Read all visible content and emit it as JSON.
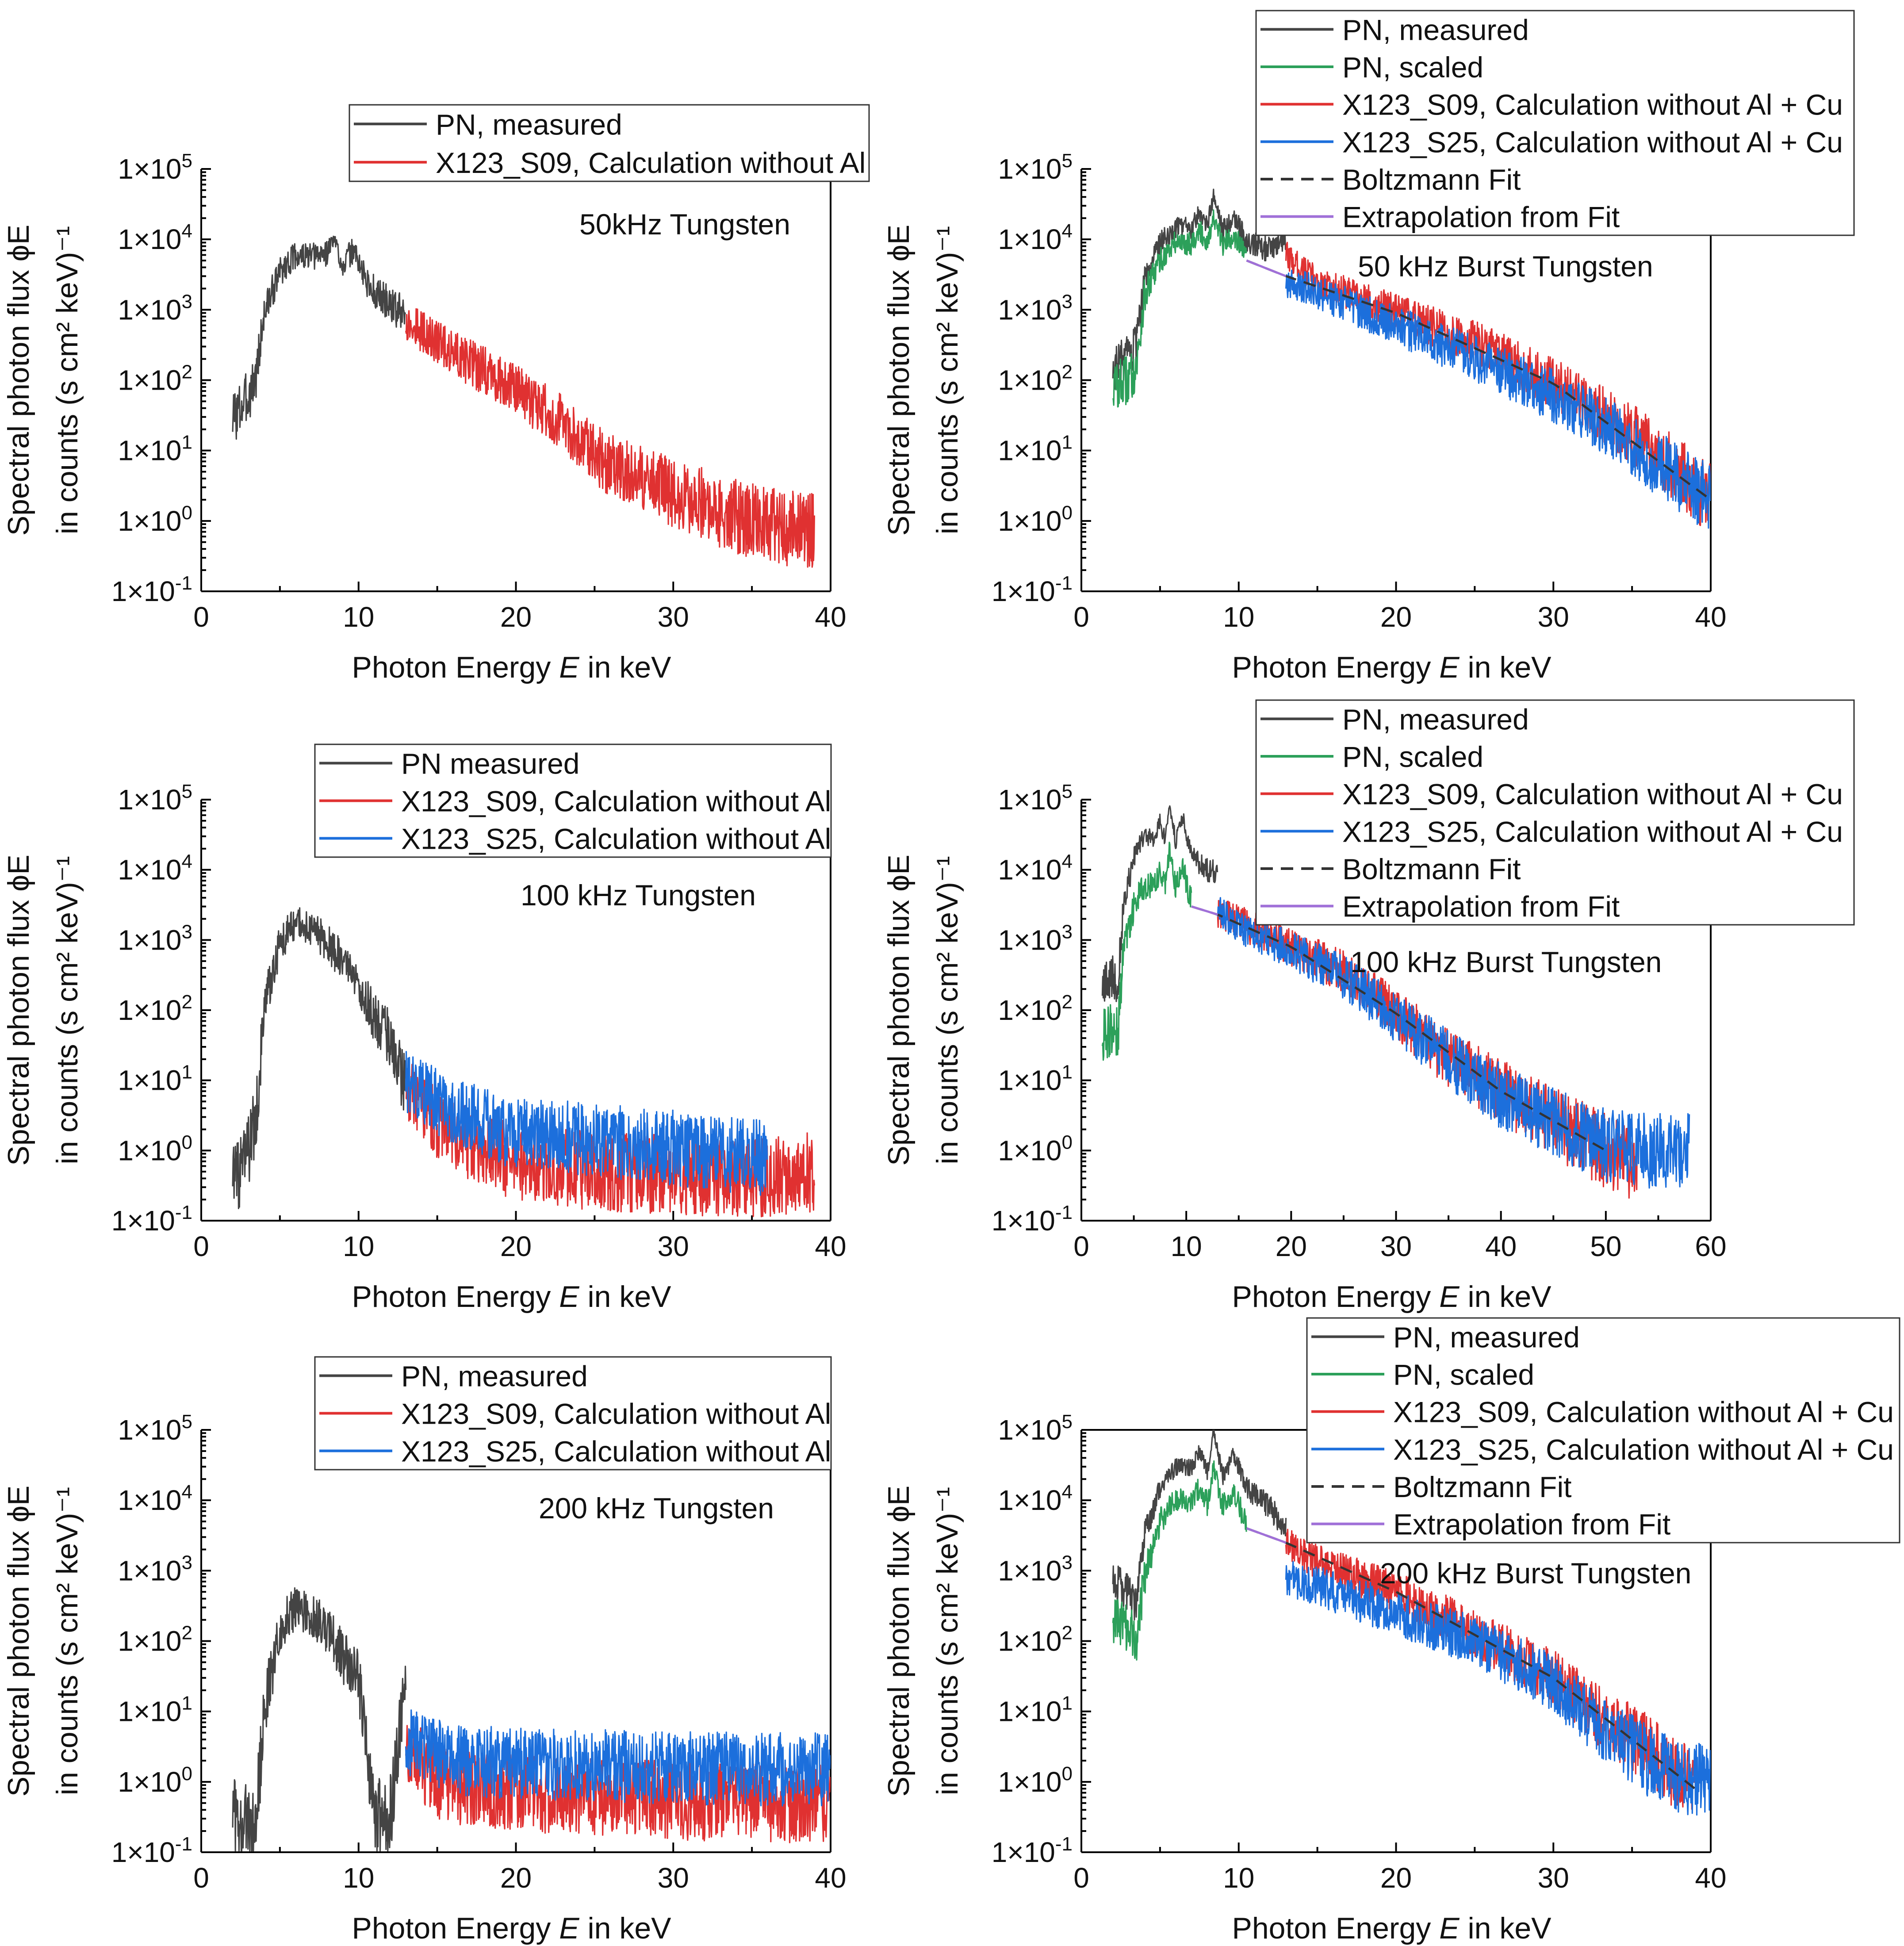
{
  "figure": {
    "y_axis_label_line1": "Spectral photon flux ϕE",
    "y_axis_label_line2": "in counts (s cm² keV)⁻¹",
    "x_axis_label": "Photon Energy E in keV"
  },
  "colors": {
    "pn_measured": "#444444",
    "pn_scaled": "#2ca05a",
    "x123_s09": "#e03131",
    "x123_s25": "#1c6fdc",
    "boltzmann_fit": "#333333",
    "extrapolation": "#a070d8"
  },
  "chart_data": [
    {
      "type": "line",
      "title": "50kHz Tungsten",
      "xlabel": "Photon Energy E in keV",
      "ylabel": "Spectral photon flux ϕE in counts (s cm² keV)⁻¹",
      "xlim": [
        0,
        40
      ],
      "ylim": [
        0.1,
        100000
      ],
      "yscale": "log",
      "xticks": [
        "0",
        "10",
        "20",
        "30",
        "40"
      ],
      "yticks": [
        "1×10-1",
        "1×100",
        "1×101",
        "1×102",
        "1×103",
        "1×104",
        "1×105"
      ],
      "legend": [
        "PN, measured",
        "X123_S09, Calculation without Al"
      ],
      "series": [
        {
          "name": "PN, measured",
          "color_key": "pn_measured",
          "x": [
            2,
            2.5,
            3,
            3.5,
            4,
            5,
            6,
            7,
            8,
            8.4,
            9,
            9.7,
            10.5,
            11,
            12,
            13
          ],
          "y": [
            30,
            40,
            60,
            120,
            900,
            3500,
            6000,
            5500,
            6500,
            10000,
            4500,
            7000,
            2500,
            1800,
            1200,
            800
          ]
        },
        {
          "name": "X123_S09, Calculation without Al",
          "color_key": "x123_s09",
          "x": [
            13,
            15,
            17,
            19,
            21,
            23,
            25,
            26,
            28,
            30,
            32,
            33,
            35,
            37,
            39
          ],
          "y": [
            700,
            350,
            180,
            100,
            50,
            25,
            10,
            6,
            4,
            2.5,
            1.8,
            1.3,
            1.0,
            0.8,
            0.7
          ]
        }
      ]
    },
    {
      "type": "line",
      "title": "50 kHz Burst Tungsten",
      "xlabel": "Photon Energy E in keV",
      "ylabel": "Spectral photon flux ϕE in counts (s cm² keV)⁻¹",
      "xlim": [
        0,
        40
      ],
      "ylim": [
        0.1,
        100000
      ],
      "yscale": "log",
      "xticks": [
        "0",
        "10",
        "20",
        "30",
        "40"
      ],
      "yticks": [
        "1×10-1",
        "1×100",
        "1×101",
        "1×102",
        "1×103",
        "1×104",
        "1×105"
      ],
      "legend": [
        "PN, measured",
        "PN, scaled",
        "X123_S09, Calculation without Al + Cu",
        "X123_S25, Calculation without Al + Cu",
        "Boltzmann Fit",
        "Extrapolation from Fit"
      ],
      "series": [
        {
          "name": "PN, measured",
          "color_key": "pn_measured",
          "x": [
            2,
            3,
            3.5,
            4,
            5,
            6,
            7,
            7.5,
            8,
            8.4,
            9,
            9.7,
            10.5,
            12,
            13
          ],
          "y": [
            150,
            200,
            300,
            2500,
            9000,
            15000,
            14000,
            25000,
            16000,
            40000,
            13000,
            22000,
            9000,
            7000,
            10000
          ]
        },
        {
          "name": "PN, scaled",
          "color_key": "pn_scaled",
          "x": [
            2,
            3,
            3.5,
            4,
            5,
            6,
            7,
            7.5,
            8,
            8.4,
            9,
            9.7,
            10.5
          ],
          "y": [
            80,
            100,
            150,
            1500,
            5000,
            9000,
            9000,
            13000,
            9500,
            20000,
            8000,
            12000,
            5000
          ]
        },
        {
          "name": "X123_S09, Calculation without Al + Cu",
          "color_key": "x123_s09",
          "x": [
            13,
            15,
            20,
            25,
            30,
            33,
            36,
            38,
            40
          ],
          "y": [
            6000,
            2500,
            900,
            350,
            90,
            35,
            12,
            5,
            2
          ]
        },
        {
          "name": "X123_S25, Calculation without Al + Cu",
          "color_key": "x123_s25",
          "x": [
            13,
            15,
            20,
            25,
            30,
            33,
            36,
            38,
            40
          ],
          "y": [
            2500,
            1800,
            600,
            200,
            60,
            25,
            8,
            4,
            2
          ]
        },
        {
          "name": "Boltzmann Fit",
          "color_key": "boltzmann_fit",
          "x": [
            10.5,
            13,
            20,
            30,
            40
          ],
          "y": [
            5000,
            3000,
            900,
            90,
            2
          ]
        },
        {
          "name": "Extrapolation from Fit",
          "color_key": "extrapolation",
          "x": [
            10.5,
            13
          ],
          "y": [
            5000,
            3000
          ]
        }
      ]
    },
    {
      "type": "line",
      "title": "100 kHz  Tungsten",
      "xlabel": "Photon Energy E in keV",
      "ylabel": "Spectral photon flux ϕE in counts (s cm² keV)⁻¹",
      "xlim": [
        0,
        40
      ],
      "ylim": [
        0.1,
        100000
      ],
      "yscale": "log",
      "xticks": [
        "0",
        "10",
        "20",
        "30",
        "40"
      ],
      "yticks": [
        "1×10-1",
        "1×100",
        "1×101",
        "1×102",
        "1×103",
        "1×104",
        "1×105"
      ],
      "legend": [
        "PN measured",
        "X123_S09, Calculation without Al",
        "X123_S25, Calculation without Al"
      ],
      "series": [
        {
          "name": "PN measured",
          "color_key": "pn_measured",
          "x": [
            2,
            2.5,
            3,
            3.5,
            4,
            5,
            6,
            7,
            8,
            9,
            10,
            11,
            12,
            12.8,
            13
          ],
          "y": [
            0.5,
            0.4,
            1.0,
            3,
            100,
            900,
            1800,
            1500,
            900,
            500,
            200,
            80,
            40,
            10,
            8
          ]
        },
        {
          "name": "X123_S09, Calculation without Al",
          "color_key": "x123_s09",
          "x": [
            13,
            15,
            17,
            19,
            21,
            25,
            30,
            35,
            39
          ],
          "y": [
            8,
            2.5,
            1.2,
            0.8,
            0.6,
            0.5,
            0.45,
            0.4,
            0.5
          ]
        },
        {
          "name": "X123_S25, Calculation without Al",
          "color_key": "x123_s25",
          "x": [
            13,
            15,
            17,
            19,
            21,
            25,
            30,
            33,
            36
          ],
          "y": [
            10,
            5,
            3,
            2,
            1.8,
            1.4,
            1.1,
            0.9,
            0.8
          ]
        }
      ]
    },
    {
      "type": "line",
      "title": "100 kHz Burst Tungsten",
      "xlabel": "Photon Energy E in keV",
      "ylabel": "Spectral photon flux ϕE in counts (s cm² keV)⁻¹",
      "xlim": [
        0,
        60
      ],
      "ylim": [
        0.1,
        100000
      ],
      "yscale": "log",
      "xticks": [
        "0",
        "10",
        "20",
        "30",
        "40",
        "50",
        "60"
      ],
      "yticks": [
        "1×10-1",
        "1×100",
        "1×101",
        "1×102",
        "1×103",
        "1×104",
        "1×105"
      ],
      "legend": [
        "PN, measured",
        "PN, scaled",
        "X123_S09, Calculation without Al + Cu",
        "X123_S25, Calculation without Al + Cu",
        "Boltzmann Fit",
        "Extrapolation from Fit"
      ],
      "series": [
        {
          "name": "PN, measured",
          "color_key": "pn_measured",
          "x": [
            2,
            3,
            3.5,
            4,
            5,
            6,
            7,
            7.5,
            8,
            8.4,
            9,
            9.7,
            10.5,
            12,
            13
          ],
          "y": [
            200,
            300,
            250,
            3000,
            15000,
            30000,
            28000,
            50000,
            25000,
            90000,
            25000,
            55000,
            15000,
            10000,
            9000
          ]
        },
        {
          "name": "PN, scaled",
          "color_key": "pn_scaled",
          "x": [
            2,
            3,
            3.5,
            4,
            5,
            6,
            7,
            7.5,
            8,
            8.4,
            9,
            9.7,
            10.5
          ],
          "y": [
            40,
            60,
            40,
            800,
            3000,
            6000,
            6000,
            10000,
            6000,
            20000,
            5500,
            10000,
            3500
          ]
        },
        {
          "name": "X123_S09, Calculation without Al + Cu",
          "color_key": "x123_s09",
          "x": [
            13,
            15,
            20,
            25,
            30,
            35,
            40,
            45,
            50,
            53
          ],
          "y": [
            2500,
            1800,
            800,
            350,
            90,
            20,
            7,
            2.5,
            1.0,
            0.5
          ]
        },
        {
          "name": "X123_S25, Calculation without Al + Cu",
          "color_key": "x123_s25",
          "x": [
            13,
            15,
            20,
            25,
            30,
            35,
            40,
            45,
            50,
            54,
            58
          ],
          "y": [
            2500,
            1600,
            700,
            300,
            80,
            20,
            6,
            2.5,
            1.2,
            1.0,
            1.0
          ]
        },
        {
          "name": "Boltzmann Fit",
          "color_key": "boltzmann_fit",
          "x": [
            10.5,
            13,
            20,
            30,
            40,
            50
          ],
          "y": [
            3000,
            2300,
            800,
            90,
            7,
            1.0
          ]
        },
        {
          "name": "Extrapolation from Fit",
          "color_key": "extrapolation",
          "x": [
            10.5,
            13
          ],
          "y": [
            3000,
            2300
          ]
        }
      ]
    },
    {
      "type": "line",
      "title": "200 kHz Tungsten",
      "xlabel": "Photon Energy E in keV",
      "ylabel": "Spectral photon flux ϕE in counts (s cm² keV)⁻¹",
      "xlim": [
        0,
        40
      ],
      "ylim": [
        0.1,
        100000
      ],
      "yscale": "log",
      "xticks": [
        "0",
        "10",
        "20",
        "30",
        "40"
      ],
      "yticks": [
        "1×10-1",
        "1×100",
        "1×101",
        "1×102",
        "1×103",
        "1×104",
        "1×105"
      ],
      "legend": [
        "PN, measured",
        "X123_S09, Calculation without Al",
        "X123_S25, Calculation without Al"
      ],
      "series": [
        {
          "name": "PN, measured",
          "color_key": "pn_measured",
          "x": [
            2,
            3,
            3.5,
            4,
            5,
            6,
            7,
            8,
            9,
            10,
            11,
            12,
            13
          ],
          "y": [
            0.3,
            0.3,
            0.3,
            10,
            150,
            300,
            250,
            150,
            60,
            30,
            0.3,
            0.3,
            35
          ]
        },
        {
          "name": "X123_S09, Calculation without Al",
          "color_key": "x123_s09",
          "x": [
            13,
            15,
            17,
            20,
            25,
            30,
            35,
            40
          ],
          "y": [
            3,
            1.0,
            0.8,
            0.7,
            0.6,
            0.55,
            0.5,
            0.5
          ]
        },
        {
          "name": "X123_S25, Calculation without Al",
          "color_key": "x123_s25",
          "x": [
            13,
            15,
            17,
            20,
            25,
            30,
            35,
            40
          ],
          "y": [
            4,
            2.5,
            2.0,
            1.8,
            1.7,
            1.6,
            1.5,
            1.5
          ]
        }
      ]
    },
    {
      "type": "line",
      "title": "200 kHz Burst Tungsten",
      "xlabel": "Photon Energy E in keV",
      "ylabel": "Spectral photon flux ϕE in counts (s cm² keV)⁻¹",
      "xlim": [
        0,
        40
      ],
      "ylim": [
        0.1,
        100000
      ],
      "yscale": "log",
      "xticks": [
        "0",
        "10",
        "20",
        "30",
        "40"
      ],
      "yticks": [
        "1×10-1",
        "1×100",
        "1×101",
        "1×102",
        "1×103",
        "1×104",
        "1×105"
      ],
      "legend": [
        "PN, measured",
        "PN, scaled",
        "X123_S09, Calculation without Al + Cu",
        "X123_S25, Calculation without Al + Cu",
        "Boltzmann Fit",
        "Extrapolation from Fit"
      ],
      "series": [
        {
          "name": "PN, measured",
          "color_key": "pn_measured",
          "x": [
            2,
            3,
            3.5,
            4,
            5,
            6,
            7,
            7.5,
            8,
            8.4,
            9,
            9.7,
            10.5,
            12,
            13
          ],
          "y": [
            700,
            500,
            300,
            3000,
            15000,
            30000,
            28000,
            50000,
            25000,
            90000,
            22000,
            45000,
            15000,
            8000,
            4000
          ]
        },
        {
          "name": "PN, scaled",
          "color_key": "pn_scaled",
          "x": [
            2,
            3,
            3.5,
            4,
            5,
            6,
            7,
            7.5,
            8,
            8.4,
            9,
            9.7,
            10.5
          ],
          "y": [
            200,
            150,
            100,
            800,
            5000,
            10000,
            10000,
            15000,
            9000,
            30000,
            8000,
            14000,
            4000
          ]
        },
        {
          "name": "X123_S09, Calculation without Al + Cu",
          "color_key": "x123_s09",
          "x": [
            13,
            15,
            20,
            25,
            30,
            33,
            36,
            38,
            39
          ],
          "y": [
            2500,
            1300,
            500,
            130,
            30,
            8,
            3,
            1.2,
            0.8
          ]
        },
        {
          "name": "X123_S25, Calculation without Al + Cu",
          "color_key": "x123_s25",
          "x": [
            13,
            15,
            20,
            25,
            30,
            33,
            36,
            38,
            40
          ],
          "y": [
            800,
            600,
            250,
            100,
            25,
            6,
            2,
            1.2,
            1.0
          ]
        },
        {
          "name": "Boltzmann Fit",
          "color_key": "boltzmann_fit",
          "x": [
            10.5,
            13,
            20,
            30,
            39
          ],
          "y": [
            4000,
            2500,
            500,
            30,
            0.8
          ]
        },
        {
          "name": "Extrapolation from Fit",
          "color_key": "extrapolation",
          "x": [
            10.5,
            13
          ],
          "y": [
            4000,
            2500
          ]
        }
      ]
    }
  ]
}
